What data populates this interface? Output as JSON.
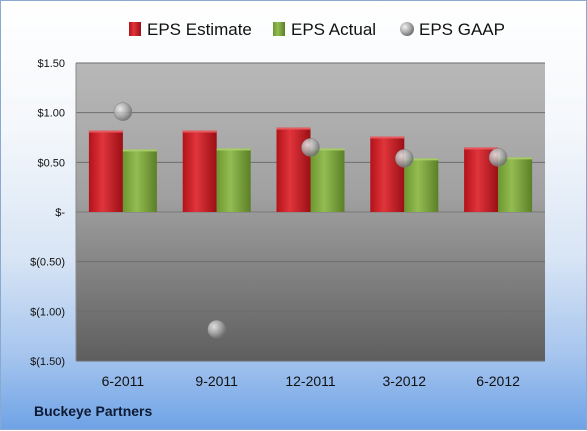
{
  "company": "Buckeye Partners",
  "colors": {
    "estimate": "#c8191f",
    "actual": "#7aa23c",
    "gaap": "#a9a9a9",
    "plot_top": "#b3b3b3",
    "plot_bottom": "#6b6b6b"
  },
  "chart_data": {
    "type": "bar",
    "categories": [
      "6-2011",
      "9-2011",
      "12-2011",
      "3-2012",
      "6-2012"
    ],
    "series": [
      {
        "name": "EPS Estimate",
        "kind": "bar",
        "values": [
          0.82,
          0.82,
          0.85,
          0.76,
          0.65
        ]
      },
      {
        "name": "EPS Actual",
        "kind": "bar",
        "values": [
          0.63,
          0.64,
          0.64,
          0.54,
          0.55
        ]
      },
      {
        "name": "EPS GAAP",
        "kind": "point",
        "values": [
          1.01,
          -1.18,
          0.65,
          0.54,
          0.55
        ]
      }
    ],
    "ylim": [
      -1.5,
      1.5
    ],
    "yticks": [
      1.5,
      1.0,
      0.5,
      0,
      -0.5,
      -1.0,
      -1.5
    ],
    "ytick_labels": [
      "$1.50",
      "$1.00",
      "$0.50",
      "$-",
      "$(0.50)",
      "$(1.00)",
      "$(1.50)"
    ],
    "grid": true,
    "legend": "top"
  }
}
